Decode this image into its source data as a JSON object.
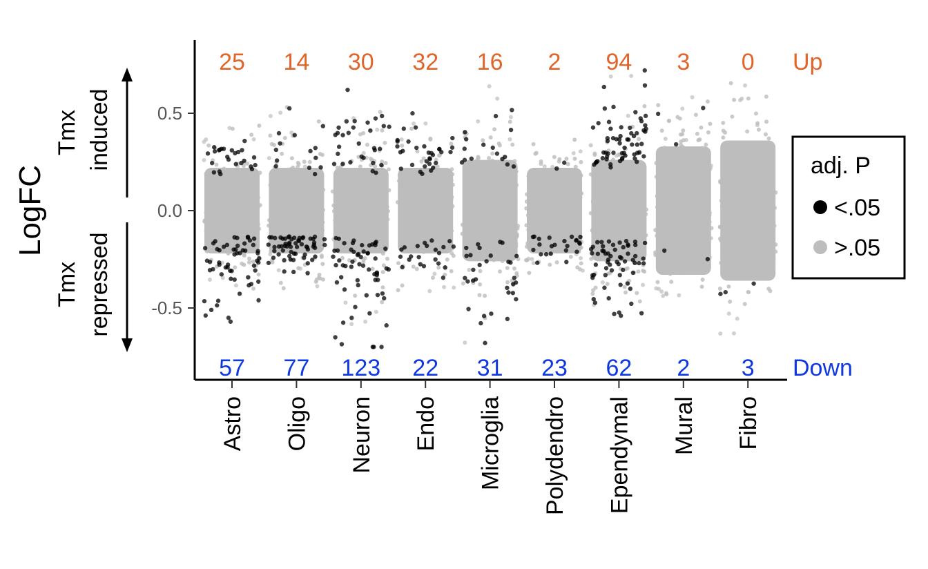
{
  "chart_data": {
    "type": "scatter",
    "title": "",
    "ylabel": "LogFC",
    "ylim": [
      -0.87,
      0.87
    ],
    "yticks": [
      {
        "value": 0.5,
        "label": "0.5"
      },
      {
        "value": 0.0,
        "label": "0.0"
      },
      {
        "value": -0.5,
        "label": "-0.5"
      }
    ],
    "categories": [
      "Astro",
      "Oligo",
      "Neuron",
      "Endo",
      "Microglia",
      "Polydendro",
      "Ependymal",
      "Mural",
      "Fibro"
    ],
    "up_counts": [
      "25",
      "14",
      "30",
      "32",
      "16",
      "2",
      "94",
      "3",
      "0"
    ],
    "down_counts": [
      "57",
      "77",
      "123",
      "22",
      "31",
      "23",
      "62",
      "2",
      "3"
    ],
    "up_label": "Up",
    "down_label": "Down",
    "induced_label": [
      "Tmx",
      "induced"
    ],
    "repressed_label": [
      "Tmx",
      "repressed"
    ],
    "spread": {
      "core_half": [
        0.22,
        0.22,
        0.22,
        0.22,
        0.26,
        0.22,
        0.26,
        0.33,
        0.36
      ],
      "tail_max": [
        0.47,
        0.56,
        0.62,
        0.5,
        0.64,
        0.37,
        0.72,
        0.68,
        0.66
      ],
      "tail_min": [
        -0.57,
        -0.4,
        -0.7,
        -0.42,
        -0.68,
        -0.34,
        -0.54,
        -0.44,
        -0.65
      ]
    },
    "legend": {
      "title": "adj. P",
      "placement": "right",
      "items": [
        {
          "label": "<.05",
          "color": "#000000"
        },
        {
          "label": ">.05",
          "color": "#bdbdbd"
        }
      ]
    },
    "colors": {
      "significant": "#000000",
      "nonsignificant": "#bdbdbd",
      "up": "#e0652a",
      "down": "#1038e0"
    }
  }
}
